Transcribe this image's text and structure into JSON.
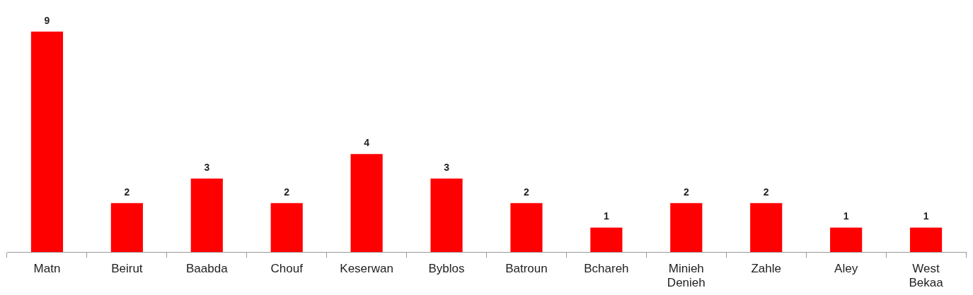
{
  "chart_data": {
    "type": "bar",
    "categories": [
      "Matn",
      "Beirut",
      "Baabda",
      "Chouf",
      "Keserwan",
      "Byblos",
      "Batroun",
      "Bchareh",
      "Minieh Denieh",
      "Zahle",
      "Aley",
      "West Bekaa"
    ],
    "values": [
      9,
      2,
      3,
      2,
      4,
      3,
      2,
      1,
      2,
      2,
      1,
      1
    ],
    "color": "#ff0000",
    "data_labels": true,
    "legend": false
  }
}
